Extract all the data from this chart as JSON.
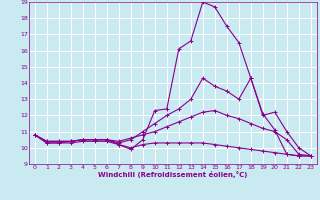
{
  "xlabel": "Windchill (Refroidissement éolien,°C)",
  "bg_color": "#c8eaf0",
  "grid_color": "#ffffff",
  "line_color": "#8b008b",
  "xlim": [
    -0.5,
    23.5
  ],
  "ylim": [
    9,
    19
  ],
  "xticks": [
    0,
    1,
    2,
    3,
    4,
    5,
    6,
    7,
    8,
    9,
    10,
    11,
    12,
    13,
    14,
    15,
    16,
    17,
    18,
    19,
    20,
    21,
    22,
    23
  ],
  "yticks": [
    9,
    10,
    11,
    12,
    13,
    14,
    15,
    16,
    17,
    18,
    19
  ],
  "lines": [
    {
      "x": [
        0,
        1,
        2,
        3,
        4,
        5,
        6,
        7,
        8,
        9,
        10,
        11,
        12,
        13,
        14,
        15,
        16,
        17,
        18,
        19,
        20,
        21,
        22,
        23
      ],
      "y": [
        10.8,
        10.3,
        10.3,
        10.3,
        10.4,
        10.4,
        10.4,
        10.2,
        9.9,
        10.5,
        12.3,
        12.4,
        16.1,
        16.6,
        19.0,
        18.7,
        17.5,
        16.5,
        14.3,
        12.1,
        11.1,
        9.6,
        9.5,
        9.5
      ]
    },
    {
      "x": [
        0,
        1,
        2,
        3,
        4,
        5,
        6,
        7,
        8,
        9,
        10,
        11,
        12,
        13,
        14,
        15,
        16,
        17,
        18,
        19,
        20,
        21,
        22,
        23
      ],
      "y": [
        10.8,
        10.3,
        10.3,
        10.4,
        10.5,
        10.5,
        10.5,
        10.3,
        10.5,
        11.0,
        11.5,
        12.0,
        12.4,
        13.0,
        14.3,
        13.8,
        13.5,
        13.0,
        14.3,
        12.0,
        12.2,
        11.0,
        10.0,
        9.5
      ]
    },
    {
      "x": [
        0,
        1,
        2,
        3,
        4,
        5,
        6,
        7,
        8,
        9,
        10,
        11,
        12,
        13,
        14,
        15,
        16,
        17,
        18,
        19,
        20,
        21,
        22,
        23
      ],
      "y": [
        10.8,
        10.4,
        10.4,
        10.4,
        10.5,
        10.5,
        10.5,
        10.4,
        10.6,
        10.8,
        11.0,
        11.3,
        11.6,
        11.9,
        12.2,
        12.3,
        12.0,
        11.8,
        11.5,
        11.2,
        11.0,
        10.5,
        9.6,
        9.5
      ]
    },
    {
      "x": [
        0,
        1,
        2,
        3,
        4,
        5,
        6,
        7,
        8,
        9,
        10,
        11,
        12,
        13,
        14,
        15,
        16,
        17,
        18,
        19,
        20,
        21,
        22,
        23
      ],
      "y": [
        10.8,
        10.4,
        10.4,
        10.4,
        10.5,
        10.5,
        10.5,
        10.2,
        10.0,
        10.2,
        10.3,
        10.3,
        10.3,
        10.3,
        10.3,
        10.2,
        10.1,
        10.0,
        9.9,
        9.8,
        9.7,
        9.6,
        9.5,
        9.5
      ]
    }
  ],
  "marker": "+",
  "markersize": 3,
  "linewidth": 0.8
}
